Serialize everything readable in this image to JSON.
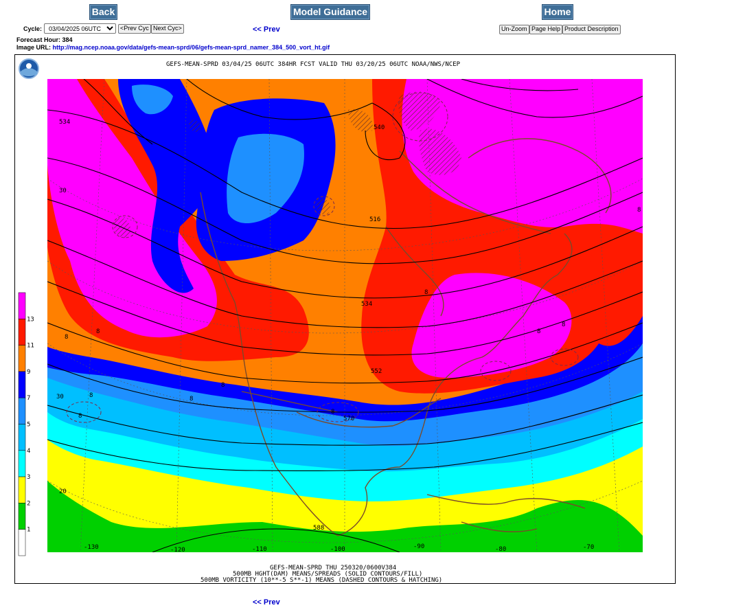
{
  "nav": {
    "back_label": "Back",
    "model_guidance_label": "Model Guidance",
    "home_label": "Home"
  },
  "controls": {
    "cycle_label": "Cycle:",
    "cycle_value": "03/04/2025 06UTC",
    "prev_cyc_label": "<Prev Cyc",
    "next_cyc_label": "Next Cyc>",
    "prev_link": "<< Prev",
    "unzoom_label": "Un-Zoom",
    "page_help_label": "Page Help",
    "product_description_label": "Product Description"
  },
  "info": {
    "forecast_hour_label": "Forecast Hour:",
    "forecast_hour_value": "384",
    "image_url_label": "Image URL:",
    "image_url": "http://mag.ncep.noaa.gov/data/gefs-mean-sprd/06/gefs-mean-sprd_namer_384_500_vort_ht.gif"
  },
  "map": {
    "header": "GEFS-MEAN-SPRD 03/04/25 06UTC 384HR FCST VALID THU 03/20/25 06UTC NOAA/NWS/NCEP",
    "footer1": "GEFS-MEAN-SPRD THU 250320/0600V384",
    "footer2": "500MB HGHT(DAM) MEANS/SPREADS (SOLID CONTOURS/FILL)",
    "footer3": "500MB VORTICITY (10**-5 S**-1) MEANS (DASHED CONTOURS & HATCHING)",
    "legend": [
      {
        "label": "13",
        "color": "#ff00ff"
      },
      {
        "label": "11",
        "color": "#ff1a00"
      },
      {
        "label": "9",
        "color": "#ff8000"
      },
      {
        "label": "7",
        "color": "#0000ff"
      },
      {
        "label": "5",
        "color": "#1e90ff"
      },
      {
        "label": "4",
        "color": "#00bfff"
      },
      {
        "label": "3",
        "color": "#00ffff"
      },
      {
        "label": "2",
        "color": "#ffff00"
      },
      {
        "label": "1",
        "color": "#00d000"
      },
      {
        "label": "",
        "color": "#ffffff"
      }
    ],
    "contour_labels": [
      "534",
      "540",
      "516",
      "534",
      "552",
      "570",
      "588"
    ],
    "lon_labels": [
      "-130",
      "-120",
      "-110",
      "-100",
      "-90",
      "-80",
      "-70"
    ],
    "lat_labels": [
      "30",
      "30",
      "20"
    ],
    "vort_labels": [
      "8",
      "8",
      "8",
      "8",
      "8",
      "8",
      "8",
      "8",
      "8",
      "8",
      "8"
    ]
  },
  "bottom": {
    "prev_link": "<< Prev"
  }
}
